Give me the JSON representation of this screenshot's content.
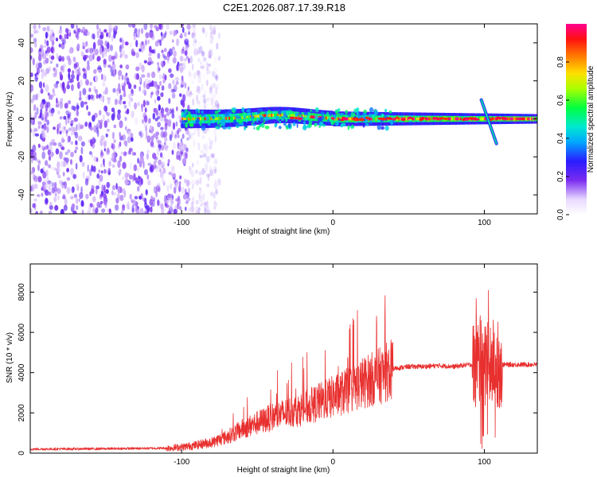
{
  "title": "C2E1.2026.087.17.39.R18",
  "chart_data": [
    {
      "type": "heatmap",
      "name": "spectrogram",
      "xlabel": "Height of straight line (km)",
      "ylabel": "Frequency (Hz)",
      "xlim": [
        -200,
        135
      ],
      "ylim": [
        -50,
        50
      ],
      "xticks": [
        -100,
        0,
        100
      ],
      "xtick_labels": [
        "-100",
        "0",
        "100"
      ],
      "yticks": [
        -40,
        -20,
        0,
        20,
        40
      ],
      "ytick_labels": [
        "-40",
        "-20",
        "0",
        "20",
        "40"
      ],
      "colorbar": {
        "label": "Normalized spectral amplitude",
        "range": [
          0,
          1
        ],
        "ticks": [
          0.0,
          0.2,
          0.4,
          0.6,
          0.8
        ],
        "tick_labels": [
          "0.0",
          "0.2",
          "0.4",
          "0.6",
          "0.8"
        ]
      },
      "features": [
        {
          "description": "broadband noise",
          "x_range": [
            -200,
            -95
          ],
          "freq_range": [
            -50,
            50
          ],
          "amplitude": 0.15
        },
        {
          "description": "signal band",
          "x_range": [
            -100,
            135
          ],
          "center_freq": 0,
          "amplitude_range": [
            0.3,
            1.0
          ]
        },
        {
          "description": "frequency excursion",
          "x_range": [
            98,
            108
          ],
          "freq_range": [
            -13,
            10
          ]
        }
      ]
    },
    {
      "type": "line",
      "name": "snr",
      "xlabel": "Height of straight line (km)",
      "ylabel": "SNR (10 * v/v)",
      "xlim": [
        -200,
        135
      ],
      "ylim": [
        0,
        9400
      ],
      "xticks": [
        -100,
        0,
        100
      ],
      "xtick_labels": [
        "-100",
        "0",
        "100"
      ],
      "yticks": [
        0,
        2000,
        4000,
        6000,
        8000
      ],
      "ytick_labels": [
        "0",
        "2000",
        "4000",
        "6000",
        "8000"
      ],
      "series": [
        {
          "name": "SNR",
          "color": "#e8302f",
          "x": [
            -200,
            -150,
            -110,
            -100,
            -90,
            -80,
            -70,
            -60,
            -50,
            -40,
            -30,
            -20,
            -10,
            0,
            10,
            20,
            30,
            35,
            40,
            50,
            60,
            70,
            80,
            90,
            95,
            100,
            105,
            110,
            120,
            135
          ],
          "values": [
            200,
            220,
            250,
            300,
            400,
            550,
            800,
            1200,
            1500,
            1800,
            2000,
            2200,
            2500,
            2800,
            3100,
            3500,
            3800,
            4000,
            4200,
            4300,
            4300,
            4350,
            4300,
            4400,
            4400,
            4500,
            4500,
            4400,
            4400,
            4400
          ]
        }
      ]
    }
  ]
}
